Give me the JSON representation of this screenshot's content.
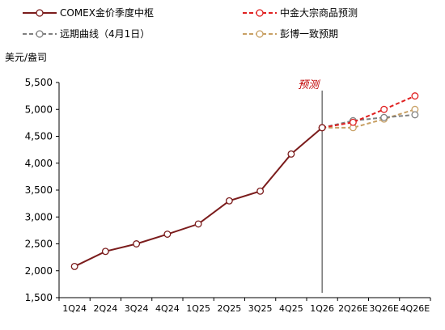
{
  "chart_data": {
    "type": "line",
    "ylabel": "美元/盎司",
    "ylim": [
      1500,
      5500
    ],
    "yticks": [
      1500,
      2000,
      2500,
      3000,
      3500,
      4000,
      4500,
      5000,
      5500
    ],
    "ytick_labels": [
      "1,500",
      "2,000",
      "2,500",
      "3,000",
      "3,500",
      "4,000",
      "4,500",
      "5,000",
      "5,500"
    ],
    "categories": [
      "1Q24",
      "2Q24",
      "3Q24",
      "4Q24",
      "1Q25",
      "2Q25",
      "3Q25",
      "4Q25",
      "1Q26",
      "2Q26E",
      "3Q26E",
      "4Q26E"
    ],
    "grid": false,
    "legend_position": "top",
    "annotation": {
      "text": "预测",
      "at_category": "1Q26"
    },
    "series": [
      {
        "name": "COMEX金价季度中枢",
        "color": "#7b1c1c",
        "style": "solid",
        "values": [
          2080,
          2360,
          2500,
          2680,
          2870,
          3300,
          3480,
          4170,
          4660,
          null,
          null,
          null
        ]
      },
      {
        "name": "中金大宗商品预测",
        "color": "#e02020",
        "style": "dashed",
        "values": [
          null,
          null,
          null,
          null,
          null,
          null,
          null,
          null,
          4660,
          4760,
          5000,
          5250
        ]
      },
      {
        "name": "远期曲线（4月1日）",
        "color": "#7f7f7f",
        "style": "dashed",
        "values": [
          null,
          null,
          null,
          null,
          null,
          null,
          null,
          null,
          4660,
          4790,
          4850,
          4900
        ]
      },
      {
        "name": "彭博一致预期",
        "color": "#c8a064",
        "style": "dashed",
        "values": [
          null,
          null,
          null,
          null,
          null,
          null,
          null,
          null,
          4660,
          4660,
          4820,
          5000
        ]
      }
    ]
  }
}
